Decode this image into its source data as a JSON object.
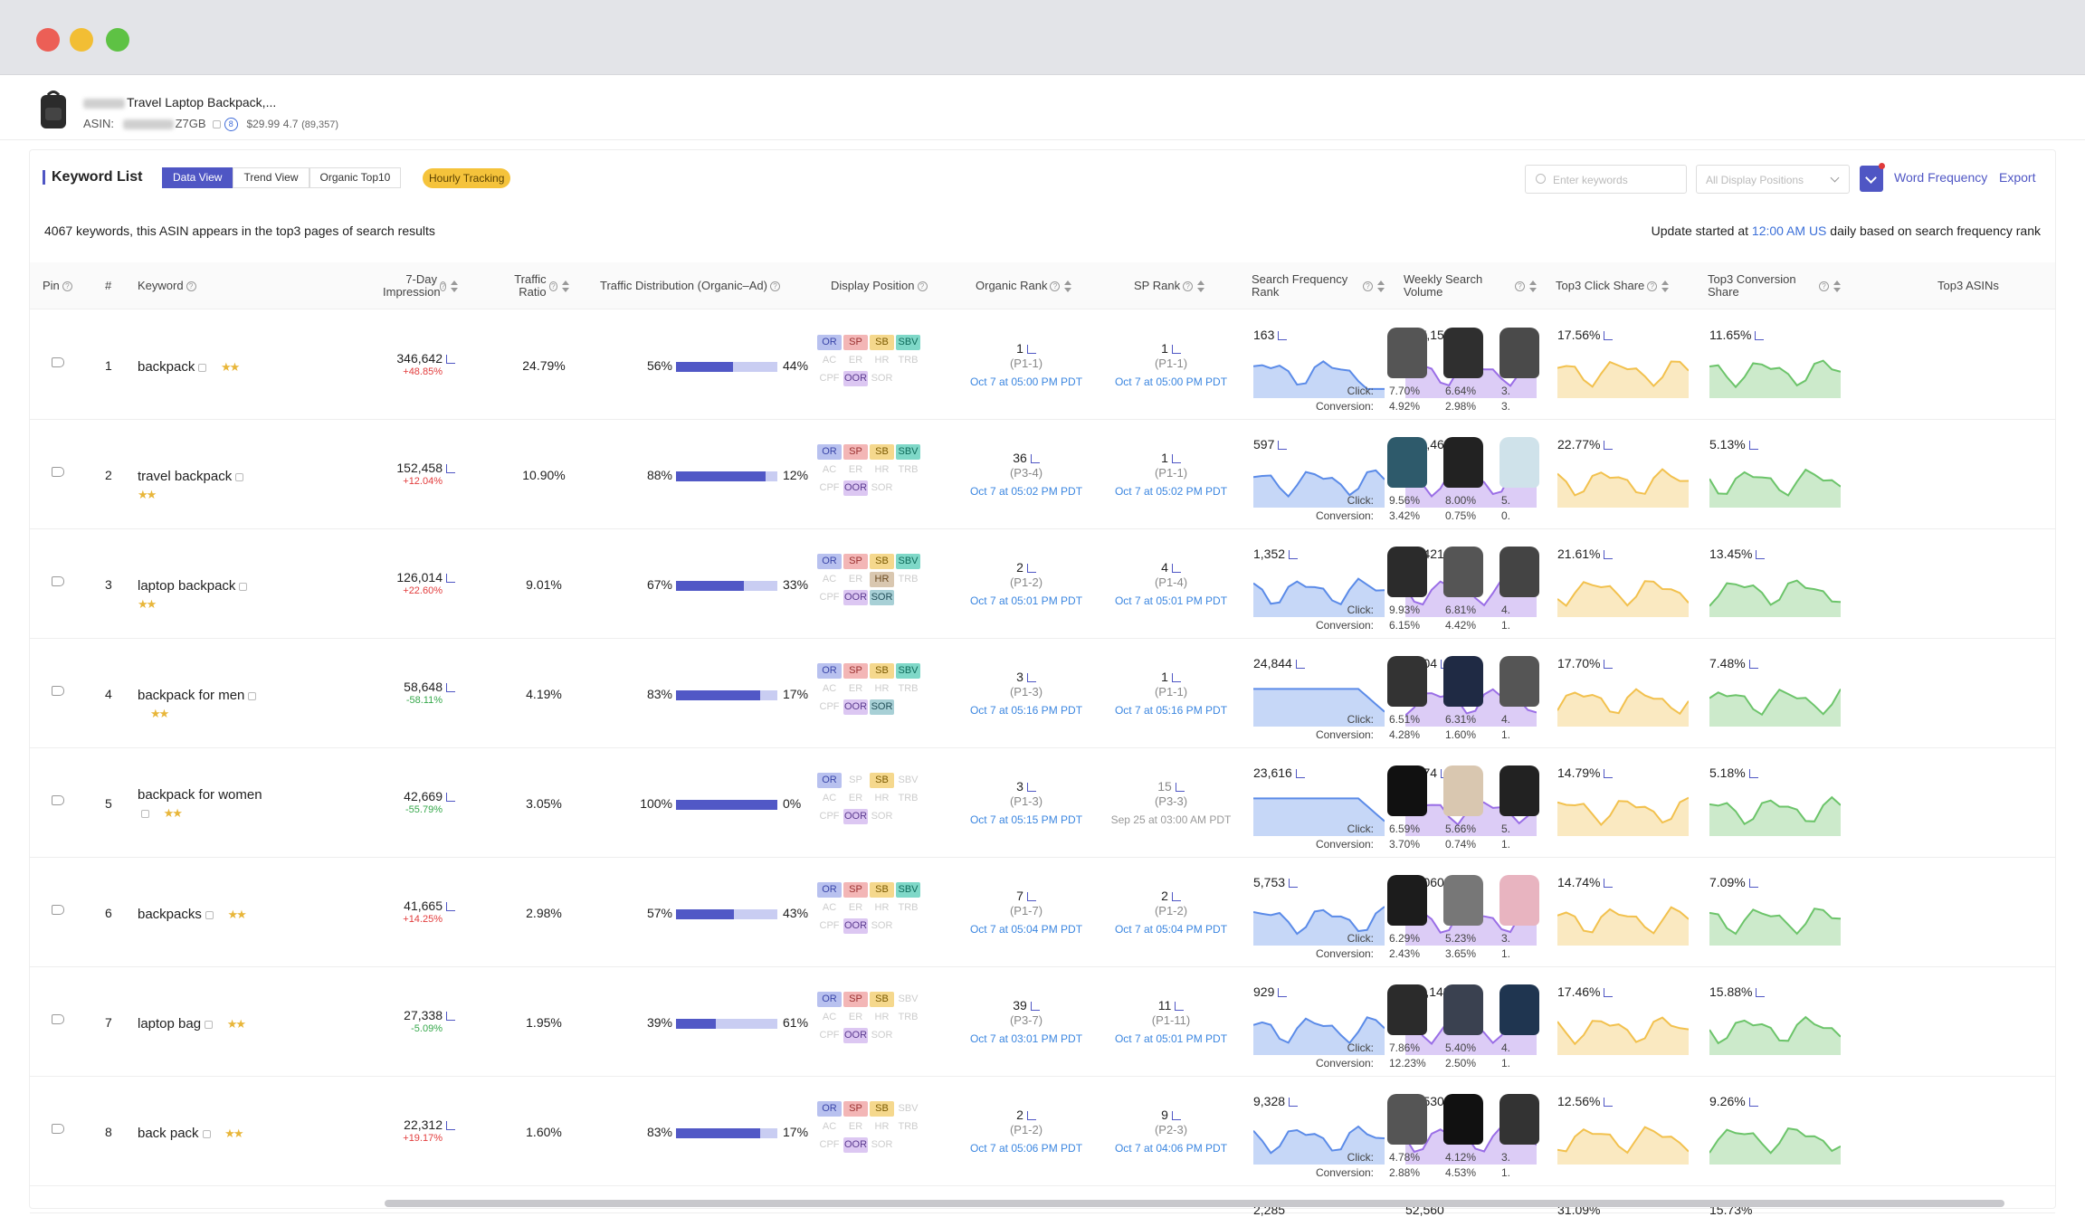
{
  "product": {
    "name": "Travel Laptop Backpack,...",
    "asin_label": "ASIN:",
    "asin_suffix": "Z7GB",
    "badge": "8",
    "price": "$29.99",
    "rating": "4.7",
    "reviews": "(89,357)"
  },
  "toolbar": {
    "title": "Keyword List",
    "tabs": [
      "Data View",
      "Trend View",
      "Organic Top10"
    ],
    "hourly": "Hourly Tracking",
    "search_placeholder": "Enter keywords",
    "display_select": "All Display Positions",
    "word_freq": "Word Frequency",
    "export": "Export"
  },
  "summary": "4067 keywords, this ASIN appears in the top3 pages of search results",
  "update": {
    "pre": "Update started at ",
    "time": "12:00 AM US",
    "post": " daily based on search frequency rank"
  },
  "headers": {
    "pin": "Pin",
    "idx": "#",
    "keyword": "Keyword",
    "impression": "7-Day Impression",
    "ratio": "Traffic Ratio",
    "dist": "Traffic Distribution (Organic–Ad)",
    "display": "Display Position",
    "organic": "Organic Rank",
    "sp": "SP Rank",
    "sfr": "Search Frequency Rank",
    "wsv": "Weekly Search Volume",
    "click": "Top3 Click Share",
    "conv": "Top3 Conversion Share",
    "asins": "Top3 ASINs"
  },
  "labels": {
    "click": "Click:",
    "conv": "Conversion:"
  },
  "rows": [
    {
      "idx": "1",
      "kw": "backpack",
      "imp": "346,642",
      "chg": "+48.85%",
      "up": true,
      "ratio": "24.79%",
      "org": 56,
      "orgl": "56%",
      "adl": "44%",
      "act": [
        "OR",
        "SP",
        "SB",
        "SBV",
        "OOR"
      ],
      "or": "1",
      "orp": "(P1-1)",
      "ord": "Oct 7 at 05:00 PM PDT",
      "sp": "1",
      "spp": "(P1-1)",
      "spd": "Oct 7 at 05:00 PM PDT",
      "spdim": false,
      "sfr": "163",
      "wsv": "207,158",
      "click": "17.56%",
      "conv": "11.65%",
      "c1": "7.70%",
      "c2": "6.64%",
      "c3": "3.",
      "v1": "4.92%",
      "v2": "2.98%",
      "v3": "3."
    },
    {
      "idx": "2",
      "kw": "travel backpack",
      "imp": "152,458",
      "chg": "+12.04%",
      "up": true,
      "ratio": "10.90%",
      "org": 88,
      "orgl": "88%",
      "adl": "12%",
      "act": [
        "OR",
        "SP",
        "SB",
        "SBV",
        "OOR"
      ],
      "or": "36",
      "orp": "(P3-4)",
      "ord": "Oct 7 at 05:02 PM PDT",
      "sp": "1",
      "spp": "(P1-1)",
      "spd": "Oct 7 at 05:02 PM PDT",
      "spdim": false,
      "sfr": "597",
      "wsv": "128,460",
      "click": "22.77%",
      "conv": "5.13%",
      "c1": "9.56%",
      "c2": "8.00%",
      "c3": "5.",
      "v1": "3.42%",
      "v2": "0.75%",
      "v3": "0."
    },
    {
      "idx": "3",
      "kw": "laptop backpack",
      "imp": "126,014",
      "chg": "+22.60%",
      "up": true,
      "ratio": "9.01%",
      "org": 67,
      "orgl": "67%",
      "adl": "33%",
      "act": [
        "OR",
        "SP",
        "SB",
        "SBV",
        "HR",
        "OOR",
        "SOR"
      ],
      "or": "2",
      "orp": "(P1-2)",
      "ord": "Oct 7 at 05:01 PM PDT",
      "sp": "4",
      "spp": "(P1-4)",
      "spd": "Oct 7 at 05:01 PM PDT",
      "spdim": false,
      "sfr": "1,352",
      "wsv": "91,421",
      "click": "21.61%",
      "conv": "13.45%",
      "c1": "9.93%",
      "c2": "6.81%",
      "c3": "4.",
      "v1": "6.15%",
      "v2": "4.42%",
      "v3": "1."
    },
    {
      "idx": "4",
      "kw": "backpack for men",
      "imp": "58,648",
      "chg": "-58.11%",
      "up": false,
      "ratio": "4.19%",
      "org": 83,
      "orgl": "83%",
      "adl": "17%",
      "act": [
        "OR",
        "SP",
        "SB",
        "SBV",
        "OOR",
        "SOR"
      ],
      "or": "3",
      "orp": "(P1-3)",
      "ord": "Oct 7 at 05:16 PM PDT",
      "sp": "1",
      "spp": "(P1-1)",
      "spd": "Oct 7 at 05:16 PM PDT",
      "spdim": false,
      "sfr": "24,844",
      "wsv": "7,604",
      "click": "17.70%",
      "conv": "7.48%",
      "c1": "6.51%",
      "c2": "6.31%",
      "c3": "4.",
      "v1": "4.28%",
      "v2": "1.60%",
      "v3": "1."
    },
    {
      "idx": "5",
      "kw": "backpack for women",
      "imp": "42,669",
      "chg": "-55.79%",
      "up": false,
      "ratio": "3.05%",
      "org": 100,
      "orgl": "100%",
      "adl": "0%",
      "act": [
        "OR",
        "SB",
        "OOR"
      ],
      "or": "3",
      "orp": "(P1-3)",
      "ord": "Oct 7 at 05:15 PM PDT",
      "sp": "15",
      "spp": "(P3-3)",
      "spd": "Sep 25 at 03:00 AM PDT",
      "spdim": true,
      "sfr": "23,616",
      "wsv": "7,874",
      "click": "14.79%",
      "conv": "5.18%",
      "c1": "6.59%",
      "c2": "5.66%",
      "c3": "5.",
      "v1": "3.70%",
      "v2": "0.74%",
      "v3": "1."
    },
    {
      "idx": "6",
      "kw": "backpacks",
      "imp": "41,665",
      "chg": "+14.25%",
      "up": true,
      "ratio": "2.98%",
      "org": 57,
      "orgl": "57%",
      "adl": "43%",
      "act": [
        "OR",
        "SP",
        "SB",
        "SBV",
        "OOR"
      ],
      "or": "7",
      "orp": "(P1-7)",
      "ord": "Oct 7 at 05:04 PM PDT",
      "sp": "2",
      "spp": "(P1-2)",
      "spd": "Oct 7 at 05:04 PM PDT",
      "spdim": false,
      "sfr": "5,753",
      "wsv": "23,060",
      "click": "14.74%",
      "conv": "7.09%",
      "c1": "6.29%",
      "c2": "5.23%",
      "c3": "3.",
      "v1": "2.43%",
      "v2": "3.65%",
      "v3": "1."
    },
    {
      "idx": "7",
      "kw": "laptop bag",
      "imp": "27,338",
      "chg": "-5.09%",
      "up": false,
      "ratio": "1.95%",
      "org": 39,
      "orgl": "39%",
      "adl": "61%",
      "act": [
        "OR",
        "SP",
        "SB",
        "OOR"
      ],
      "or": "39",
      "orp": "(P3-7)",
      "ord": "Oct 7 at 03:01 PM PDT",
      "sp": "11",
      "spp": "(P1-11)",
      "spd": "Oct 7 at 05:01 PM PDT",
      "spdim": false,
      "sfr": "929",
      "wsv": "112,148",
      "click": "17.46%",
      "conv": "15.88%",
      "c1": "7.86%",
      "c2": "5.40%",
      "c3": "4.",
      "v1": "12.23%",
      "v2": "2.50%",
      "v3": "1."
    },
    {
      "idx": "8",
      "kw": "back pack",
      "imp": "22,312",
      "chg": "+19.17%",
      "up": true,
      "ratio": "1.60%",
      "org": 83,
      "orgl": "83%",
      "adl": "17%",
      "act": [
        "OR",
        "SP",
        "SB",
        "OOR"
      ],
      "or": "2",
      "orp": "(P1-2)",
      "ord": "Oct 7 at 05:06 PM PDT",
      "sp": "9",
      "spp": "(P2-3)",
      "spd": "Oct 7 at 04:06 PM PDT",
      "spdim": false,
      "sfr": "9,328",
      "wsv": "15,530",
      "click": "12.56%",
      "conv": "9.26%",
      "c1": "4.78%",
      "c2": "4.12%",
      "c3": "3.",
      "v1": "2.88%",
      "v2": "4.53%",
      "v3": "1."
    }
  ],
  "partial": {
    "sfr": "2,285",
    "wsv": "52,560",
    "click": "31.09%",
    "conv": "15.73%"
  },
  "colors": {
    "accent": "#4f56c4",
    "sfr": "#5b8be8",
    "wsv": "#9a6ee6",
    "click": "#f2c14e",
    "conv": "#6cc46a"
  }
}
